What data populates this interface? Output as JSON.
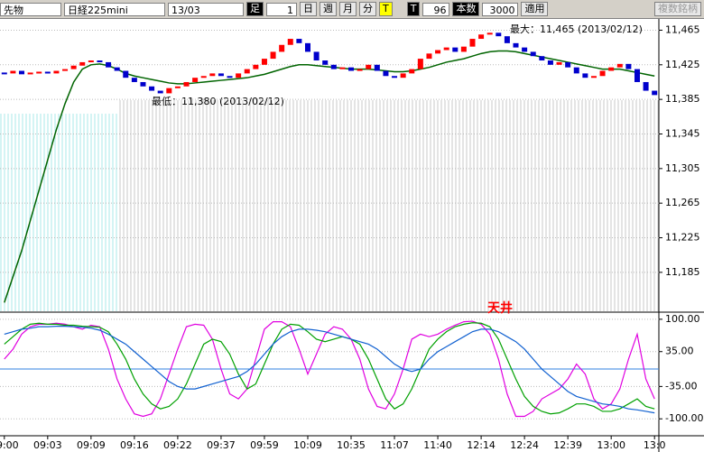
{
  "toolbar": {
    "market": "先物",
    "symbol": "日経225mini",
    "contract": "13/03",
    "bar_label": "足",
    "bar_size": "1",
    "day": "日",
    "week": "週",
    "month": "月",
    "minute": "分",
    "tick": "T",
    "tick2": "T",
    "tick_count": "96",
    "count_label": "本数",
    "count": "3000",
    "apply": "適用",
    "compare": "複数銘柄"
  },
  "chart_data": [
    {
      "type": "candle-line",
      "annotations": {
        "max": "最大：11,465 (2013/02/12)",
        "min": "最低：11,380 (2013/02/12)",
        "signal": "天井"
      },
      "categories": [
        "09:00",
        null,
        null,
        null,
        null,
        "09:03",
        null,
        null,
        null,
        null,
        "09:09",
        null,
        null,
        null,
        null,
        "09:16",
        null,
        null,
        null,
        null,
        "09:22",
        null,
        null,
        null,
        null,
        "09:37",
        null,
        null,
        null,
        null,
        "09:59",
        null,
        null,
        null,
        null,
        "10:09",
        null,
        null,
        null,
        null,
        "10:35",
        null,
        null,
        null,
        null,
        "11:07",
        null,
        null,
        null,
        null,
        "11:40",
        null,
        null,
        null,
        null,
        "12:14",
        null,
        null,
        null,
        null,
        "12:24",
        null,
        null,
        null,
        null,
        "12:39",
        null,
        null,
        null,
        null,
        "13:00",
        null,
        null,
        null,
        null,
        "13:0"
      ],
      "ylim": [
        11140,
        11478
      ],
      "yticks": [
        {
          "value": 11465,
          "label": "11,465"
        },
        {
          "value": 11425,
          "label": "11,425"
        },
        {
          "value": 11385,
          "label": "11,385"
        },
        {
          "value": 11345,
          "label": "11,345"
        },
        {
          "value": 11305,
          "label": "11,305"
        },
        {
          "value": 11265,
          "label": "11,265"
        },
        {
          "value": 11225,
          "label": "11,225"
        },
        {
          "value": 11185,
          "label": "11,185"
        }
      ],
      "up_color": "#ff0000",
      "down_color": "#0000cc",
      "series": [
        {
          "name": "close",
          "color": "#0000cc",
          "values": [
            11415,
            11418,
            11414,
            11416,
            11417,
            11415,
            11418,
            11420,
            11424,
            11428,
            11430,
            11428,
            11422,
            11418,
            11410,
            11405,
            11400,
            11395,
            11392,
            11398,
            11400,
            11405,
            11410,
            11412,
            11415,
            11412,
            11410,
            11415,
            11420,
            11425,
            11432,
            11440,
            11448,
            11455,
            11450,
            11440,
            11430,
            11425,
            11420,
            11422,
            11418,
            11420,
            11425,
            11418,
            11412,
            11410,
            11415,
            11420,
            11432,
            11438,
            11442,
            11445,
            11440,
            11446,
            11455,
            11460,
            11462,
            11458,
            11450,
            11445,
            11440,
            11435,
            11430,
            11425,
            11428,
            11422,
            11415,
            11410,
            11412,
            11418,
            11422,
            11426,
            11420,
            11405,
            11395,
            11390
          ]
        },
        {
          "name": "ma",
          "color": "#006400",
          "values": [
            11150,
            11180,
            11210,
            11245,
            11280,
            11315,
            11350,
            11380,
            11405,
            11420,
            11425,
            11426,
            11424,
            11420,
            11415,
            11412,
            11410,
            11408,
            11406,
            11404,
            11403,
            11403,
            11404,
            11405,
            11406,
            11407,
            11408,
            11409,
            11410,
            11412,
            11414,
            11417,
            11420,
            11423,
            11425,
            11425,
            11424,
            11423,
            11422,
            11421,
            11420,
            11420,
            11420,
            11419,
            11418,
            11417,
            11417,
            11418,
            11420,
            11422,
            11425,
            11428,
            11430,
            11432,
            11435,
            11438,
            11440,
            11441,
            11441,
            11440,
            11438,
            11436,
            11434,
            11432,
            11430,
            11428,
            11426,
            11424,
            11422,
            11420,
            11420,
            11420,
            11418,
            11416,
            11414,
            11412
          ]
        }
      ]
    },
    {
      "type": "line",
      "ylim": [
        -134,
        107
      ],
      "yticks": [
        {
          "value": 100,
          "label": "100.00"
        },
        {
          "value": 35,
          "label": "35.00"
        },
        {
          "value": -35,
          "label": "-35.00"
        },
        {
          "value": -100,
          "label": "-100.00"
        }
      ],
      "series": [
        {
          "name": "fast",
          "color": "#e000e0",
          "values": [
            20,
            40,
            70,
            85,
            90,
            90,
            92,
            90,
            85,
            80,
            88,
            85,
            40,
            -20,
            -60,
            -90,
            -95,
            -90,
            -60,
            -10,
            40,
            85,
            90,
            88,
            60,
            0,
            -50,
            -60,
            -40,
            20,
            80,
            95,
            95,
            85,
            40,
            -10,
            30,
            70,
            85,
            80,
            60,
            20,
            -40,
            -75,
            -80,
            -50,
            0,
            60,
            70,
            65,
            70,
            80,
            88,
            95,
            96,
            90,
            70,
            20,
            -50,
            -95,
            -95,
            -85,
            -60,
            -50,
            -40,
            -20,
            10,
            -10,
            -60,
            -80,
            -70,
            -40,
            20,
            70,
            -20,
            -60
          ]
        },
        {
          "name": "mid",
          "color": "#00a000",
          "values": [
            50,
            65,
            80,
            90,
            92,
            90,
            90,
            88,
            88,
            86,
            85,
            84,
            75,
            50,
            20,
            -20,
            -50,
            -70,
            -80,
            -75,
            -60,
            -30,
            10,
            50,
            60,
            55,
            30,
            -10,
            -40,
            -30,
            10,
            50,
            80,
            90,
            88,
            75,
            60,
            55,
            60,
            65,
            60,
            50,
            20,
            -20,
            -60,
            -80,
            -70,
            -40,
            0,
            40,
            60,
            75,
            85,
            90,
            93,
            92,
            85,
            60,
            20,
            -20,
            -55,
            -75,
            -85,
            -90,
            -88,
            -80,
            -70,
            -70,
            -75,
            -85,
            -85,
            -80,
            -70,
            -60,
            -75,
            -80
          ]
        },
        {
          "name": "slow",
          "color": "#1060d0",
          "values": [
            70,
            75,
            80,
            82,
            85,
            85,
            86,
            86,
            85,
            84,
            82,
            78,
            70,
            60,
            50,
            35,
            20,
            5,
            -10,
            -25,
            -35,
            -40,
            -40,
            -35,
            -30,
            -25,
            -20,
            -15,
            -5,
            10,
            30,
            50,
            65,
            75,
            80,
            80,
            78,
            75,
            70,
            65,
            60,
            55,
            50,
            40,
            25,
            10,
            0,
            -5,
            0,
            20,
            35,
            45,
            55,
            65,
            75,
            80,
            80,
            75,
            65,
            55,
            40,
            20,
            0,
            -15,
            -30,
            -45,
            -55,
            -60,
            -65,
            -70,
            -72,
            -75,
            -80,
            -82,
            -85,
            -88
          ]
        }
      ]
    }
  ]
}
